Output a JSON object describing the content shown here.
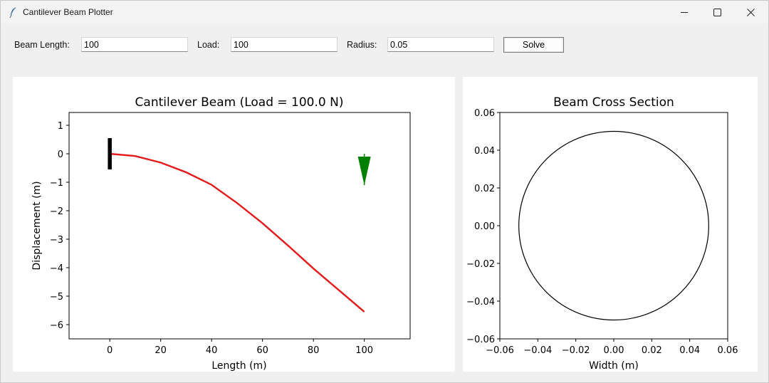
{
  "window": {
    "title": "Cantilever Beam Plotter"
  },
  "controls": {
    "beam_length_label": "Beam Length:",
    "beam_length_value": "100",
    "load_label": "Load:",
    "load_value": "100",
    "radius_label": "Radius:",
    "radius_value": "0.05",
    "solve_label": "Solve"
  },
  "icons": {
    "app": "feather-icon",
    "minimize": "minimize-icon",
    "maximize": "maximize-icon",
    "close": "close-icon"
  },
  "colors": {
    "deflection_curve": "#e41a1c",
    "load_arrow": "#008000",
    "support": "#000000"
  },
  "chart_data": [
    {
      "type": "line",
      "title": "Cantilever Beam (Load = 100.0 N)",
      "xlabel": "Length (m)",
      "ylabel": "Displacement (m)",
      "xlim": [
        -16,
        118
      ],
      "ylim": [
        -6.5,
        1.45
      ],
      "xticks": [
        0,
        20,
        40,
        60,
        80,
        100
      ],
      "xtick_labels": [
        "0",
        "20",
        "40",
        "60",
        "80",
        "100"
      ],
      "yticks": [
        1,
        0,
        -1,
        -2,
        -3,
        -4,
        -5,
        -6
      ],
      "ytick_labels": [
        "1",
        "0",
        "−1",
        "−2",
        "−3",
        "−4",
        "−5",
        "−6"
      ],
      "beam_length": 100,
      "tip_displacement": -5.55,
      "series": [
        {
          "x": [
            0,
            10,
            20,
            30,
            40,
            50,
            60,
            70,
            80,
            90,
            100
          ],
          "y": [
            0,
            -0.08,
            -0.31,
            -0.65,
            -1.09,
            -1.73,
            -2.44,
            -3.22,
            -4.03,
            -4.79,
            -5.55
          ]
        }
      ],
      "support": {
        "x": 0,
        "y_top": 0.55,
        "y_bottom": -0.55
      },
      "load_arrow": {
        "x": 100,
        "y_tail": 0,
        "y_head": -1.1
      }
    },
    {
      "type": "line",
      "title": "Beam Cross Section",
      "xlabel": "Width (m)",
      "ylabel": "",
      "xlim": [
        -0.06,
        0.06
      ],
      "ylim": [
        -0.06,
        0.06
      ],
      "xticks": [
        -0.06,
        -0.04,
        -0.02,
        0.0,
        0.02,
        0.04,
        0.06
      ],
      "xtick_labels": [
        "−0.06",
        "−0.04",
        "−0.02",
        "0.00",
        "0.02",
        "0.04",
        "0.06"
      ],
      "yticks": [
        0.06,
        0.04,
        0.02,
        0.0,
        -0.02,
        -0.04,
        -0.06
      ],
      "ytick_labels": [
        "0.06",
        "0.04",
        "0.02",
        "0.00",
        "−0.02",
        "−0.04",
        "−0.06"
      ],
      "circle": {
        "cx": 0,
        "cy": 0,
        "r": 0.05
      }
    }
  ]
}
